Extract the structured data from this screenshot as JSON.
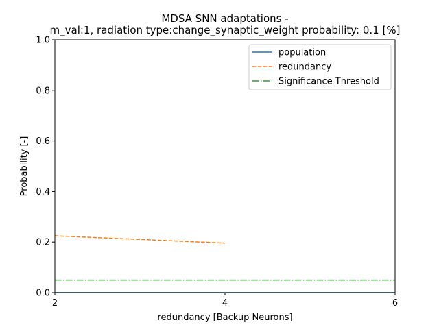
{
  "chart_data": {
    "type": "line",
    "title_line1": "MDSA SNN adaptations -",
    "title_line2": "m_val:1, radiation type:change_synaptic_weight probability: 0.1 [%]",
    "xlabel": "redundancy [Backup Neurons]",
    "ylabel": "Probability [-]",
    "xlim": [
      2,
      6
    ],
    "ylim": [
      0,
      1
    ],
    "x_ticks": [
      "2",
      "4",
      "6"
    ],
    "y_ticks": [
      "0.0",
      "0.2",
      "0.4",
      "0.6",
      "0.8",
      "1.0"
    ],
    "grid": false,
    "legend_position": "top-right",
    "series": [
      {
        "name": "population",
        "style": "solid",
        "color": "#1f77b4",
        "x": [
          2,
          6
        ],
        "y": [
          0.0,
          0.0
        ]
      },
      {
        "name": "redundancy",
        "style": "dashed",
        "color": "#ff7f0e",
        "x": [
          2,
          4
        ],
        "y": [
          0.225,
          0.196
        ]
      },
      {
        "name": "Significance Threshold",
        "style": "dashdot",
        "color": "#2ca02c",
        "x": [
          2,
          6
        ],
        "y": [
          0.05,
          0.05
        ]
      }
    ]
  }
}
